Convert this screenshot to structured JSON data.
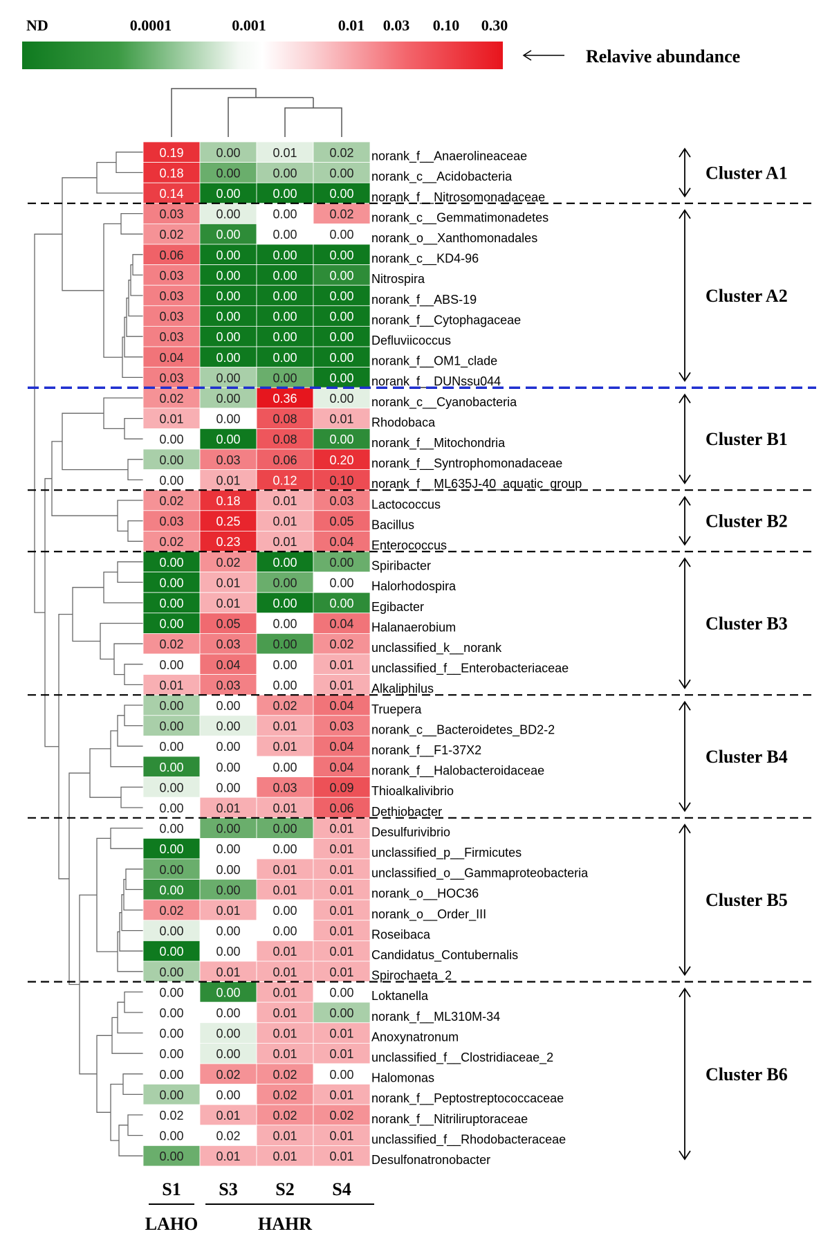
{
  "colorbar": {
    "tick_labels": [
      "ND",
      "0.0001",
      "0.001",
      "0.01",
      "0.03",
      "0.10",
      "0.30"
    ],
    "title": "Relavive abundance",
    "colors": {
      "low": "#0f7a1f",
      "mid": "#ffffff",
      "high": "#e8141c"
    }
  },
  "chart_data": {
    "type": "heatmap",
    "columns": [
      "S1",
      "S3",
      "S2",
      "S4"
    ],
    "groups": [
      {
        "label": "LAHO",
        "columns": [
          "S1"
        ]
      },
      {
        "label": "HAHR",
        "columns": [
          "S3",
          "S2",
          "S4"
        ]
      }
    ],
    "rows": [
      "norank_f__Anaerolineaceae",
      "norank_c__Acidobacteria",
      "norank_f__Nitrosomonadaceae",
      "norank_c__Gemmatimonadetes",
      "norank_o__Xanthomonadales",
      "norank_c__KD4-96",
      "Nitrospira",
      "norank_f__ABS-19",
      "norank_f__Cytophagaceae",
      "Defluviicoccus",
      "norank_f__OM1_clade",
      "norank_f__DUNssu044",
      "norank_c__Cyanobacteria",
      "Rhodobaca",
      "norank_f__Mitochondria",
      "norank_f__Syntrophomonadaceae",
      "norank_f__ML635J-40_aquatic_group",
      "Lactococcus",
      "Bacillus",
      "Enterococcus",
      "Spiribacter",
      "Halorhodospira",
      "Egibacter",
      "Halanaerobium",
      "unclassified_k__norank",
      "unclassified_f__Enterobacteriaceae",
      "Alkaliphilus",
      "Truepera",
      "norank_c__Bacteroidetes_BD2-2",
      "norank_f__F1-37X2",
      "norank_f__Halobacteroidaceae",
      "Thioalkalivibrio",
      "Dethiobacter",
      "Desulfurivibrio",
      "unclassified_p__Firmicutes",
      "unclassified_o__Gammaproteobacteria",
      "norank_o__HOC36",
      "norank_o__Order_III",
      "Roseibaca",
      "Candidatus_Contubernalis",
      "Spirochaeta_2",
      "Loktanella",
      "norank_f__ML310M-34",
      "Anoxynatronum",
      "unclassified_f__Clostridiaceae_2",
      "Halomonas",
      "norank_f__Peptostreptococcaceae",
      "norank_f__Nitriliruptoraceae",
      "unclassified_f__Rhodobacteraceae",
      "Desulfonatronobacter"
    ],
    "values": [
      [
        "0.19",
        "0.00",
        "0.01",
        "0.02"
      ],
      [
        "0.18",
        "0.00",
        "0.00",
        "0.00"
      ],
      [
        "0.14",
        "0.00",
        "0.00",
        "0.00"
      ],
      [
        "0.03",
        "0.00",
        "0.00",
        "0.02"
      ],
      [
        "0.02",
        "0.00",
        "0.00",
        "0.00"
      ],
      [
        "0.06",
        "0.00",
        "0.00",
        "0.00"
      ],
      [
        "0.03",
        "0.00",
        "0.00",
        "0.00"
      ],
      [
        "0.03",
        "0.00",
        "0.00",
        "0.00"
      ],
      [
        "0.03",
        "0.00",
        "0.00",
        "0.00"
      ],
      [
        "0.03",
        "0.00",
        "0.00",
        "0.00"
      ],
      [
        "0.04",
        "0.00",
        "0.00",
        "0.00"
      ],
      [
        "0.03",
        "0.00",
        "0.00",
        "0.00"
      ],
      [
        "0.02",
        "0.00",
        "0.36",
        "0.00"
      ],
      [
        "0.01",
        "0.00",
        "0.08",
        "0.01"
      ],
      [
        "0.00",
        "0.00",
        "0.08",
        "0.00"
      ],
      [
        "0.00",
        "0.03",
        "0.06",
        "0.20"
      ],
      [
        "0.00",
        "0.01",
        "0.12",
        "0.10"
      ],
      [
        "0.02",
        "0.18",
        "0.01",
        "0.03"
      ],
      [
        "0.03",
        "0.25",
        "0.01",
        "0.05"
      ],
      [
        "0.02",
        "0.23",
        "0.01",
        "0.04"
      ],
      [
        "0.00",
        "0.02",
        "0.00",
        "0.00"
      ],
      [
        "0.00",
        "0.01",
        "0.00",
        "0.00"
      ],
      [
        "0.00",
        "0.01",
        "0.00",
        "0.00"
      ],
      [
        "0.00",
        "0.05",
        "0.00",
        "0.04"
      ],
      [
        "0.02",
        "0.03",
        "0.00",
        "0.02"
      ],
      [
        "0.00",
        "0.04",
        "0.00",
        "0.01"
      ],
      [
        "0.01",
        "0.03",
        "0.00",
        "0.01"
      ],
      [
        "0.00",
        "0.00",
        "0.02",
        "0.04"
      ],
      [
        "0.00",
        "0.00",
        "0.01",
        "0.03"
      ],
      [
        "0.00",
        "0.00",
        "0.01",
        "0.04"
      ],
      [
        "0.00",
        "0.00",
        "0.00",
        "0.04"
      ],
      [
        "0.00",
        "0.00",
        "0.03",
        "0.09"
      ],
      [
        "0.00",
        "0.01",
        "0.01",
        "0.06"
      ],
      [
        "0.00",
        "0.00",
        "0.00",
        "0.01"
      ],
      [
        "0.00",
        "0.00",
        "0.00",
        "0.01"
      ],
      [
        "0.00",
        "0.00",
        "0.01",
        "0.01"
      ],
      [
        "0.00",
        "0.00",
        "0.01",
        "0.01"
      ],
      [
        "0.02",
        "0.01",
        "0.00",
        "0.01"
      ],
      [
        "0.00",
        "0.00",
        "0.00",
        "0.01"
      ],
      [
        "0.00",
        "0.00",
        "0.01",
        "0.01"
      ],
      [
        "0.00",
        "0.01",
        "0.01",
        "0.01"
      ],
      [
        "0.00",
        "0.00",
        "0.01",
        "0.00"
      ],
      [
        "0.00",
        "0.00",
        "0.01",
        "0.00"
      ],
      [
        "0.00",
        "0.00",
        "0.01",
        "0.01"
      ],
      [
        "0.00",
        "0.00",
        "0.01",
        "0.01"
      ],
      [
        "0.00",
        "0.02",
        "0.02",
        "0.00"
      ],
      [
        "0.00",
        "0.00",
        "0.02",
        "0.01"
      ],
      [
        "0.02",
        "0.01",
        "0.02",
        "0.02"
      ],
      [
        "0.00",
        "0.02",
        "0.01",
        "0.01"
      ],
      [
        "0.00",
        "0.01",
        "0.01",
        "0.01"
      ]
    ],
    "clusters": [
      {
        "label": "Cluster A1",
        "rows": 3
      },
      {
        "label": "Cluster A2",
        "rows": 9
      },
      {
        "label": "Cluster B1",
        "rows": 5
      },
      {
        "label": "Cluster B2",
        "rows": 3
      },
      {
        "label": "Cluster B3",
        "rows": 7
      },
      {
        "label": "Cluster B4",
        "rows": 6
      },
      {
        "label": "Cluster B5",
        "rows": 8
      },
      {
        "label": "Cluster B6",
        "rows": 9
      }
    ],
    "colorscale": "log, green (low) - white - red (high)",
    "row_dendrogram": true,
    "column_dendrogram": true
  }
}
